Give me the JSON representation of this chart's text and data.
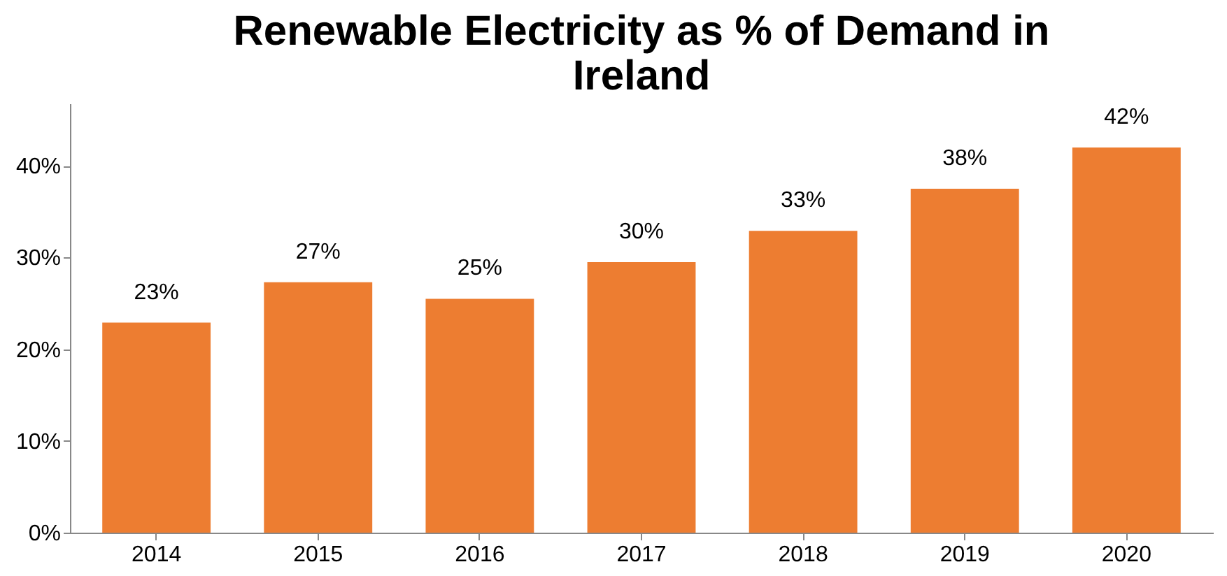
{
  "chart_data": {
    "type": "bar",
    "title": "Renewable Electricity as % of Demand in Ireland",
    "categories": [
      "2014",
      "2015",
      "2016",
      "2017",
      "2018",
      "2019",
      "2020"
    ],
    "values": [
      22.9,
      27.3,
      25.5,
      29.5,
      32.9,
      37.5,
      42.0
    ],
    "value_labels": [
      "23%",
      "27%",
      "25%",
      "30%",
      "33%",
      "38%",
      "42%"
    ],
    "color": "#ed7d31",
    "ylim": [
      0,
      46.8
    ],
    "yticks": [
      {
        "value": 0,
        "label": "0%"
      },
      {
        "value": 10,
        "label": "10%"
      },
      {
        "value": 20,
        "label": "20%"
      },
      {
        "value": 30,
        "label": "30%"
      },
      {
        "value": 40,
        "label": "40%"
      }
    ],
    "grid": false
  }
}
